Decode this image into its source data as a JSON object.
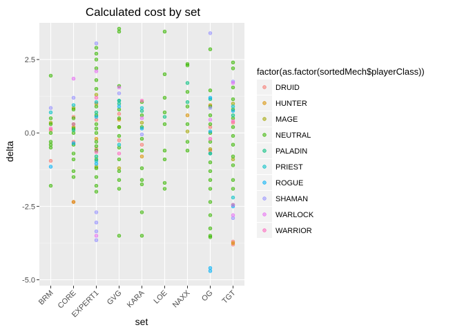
{
  "chart_data": {
    "type": "scatter",
    "title": "Calculated cost by set",
    "xlabel": "set",
    "ylabel": "delta",
    "categories": [
      "BRM",
      "CORE",
      "EXPERT1",
      "GVG",
      "KARA",
      "LOE",
      "NAXX",
      "OG",
      "TGT"
    ],
    "ylim": [
      -5.2,
      3.75
    ],
    "yticks": [
      {
        "value": 2.5,
        "label": "2.5"
      },
      {
        "value": 0.0,
        "label": "0.0"
      },
      {
        "value": -2.5,
        "label": "-2.5"
      },
      {
        "value": -5.0,
        "label": "-5.0"
      }
    ],
    "grid": true,
    "legend": {
      "title": "factor(as.factor(sortedMech$playerClass))",
      "position": "right"
    },
    "series": [
      {
        "name": "DRUID",
        "color": "#F8766D",
        "points": [
          [
            "BRM",
            0.1
          ],
          [
            "BRM",
            -0.95
          ],
          [
            "CORE",
            -2.35
          ],
          [
            "CORE",
            0.55
          ],
          [
            "CORE",
            -0.3
          ],
          [
            "EXPERT1",
            0.45
          ],
          [
            "EXPERT1",
            -0.55
          ],
          [
            "GVG",
            -0.25
          ],
          [
            "GVG",
            0.65
          ],
          [
            "KARA",
            -0.4
          ],
          [
            "OG",
            0.2
          ],
          [
            "OG",
            -0.6
          ],
          [
            "TGT",
            -3.7
          ],
          [
            "TGT",
            -3.8
          ],
          [
            "TGT",
            0.35
          ]
        ]
      },
      {
        "name": "HUNTER",
        "color": "#D89000",
        "points": [
          [
            "CORE",
            -2.35
          ],
          [
            "CORE",
            0.2
          ],
          [
            "EXPERT1",
            1.0
          ],
          [
            "EXPERT1",
            -0.2
          ],
          [
            "GVG",
            0.45
          ],
          [
            "KARA",
            -0.8
          ],
          [
            "NAXX",
            0.6
          ],
          [
            "OG",
            0.95
          ],
          [
            "TGT",
            -3.75
          ]
        ]
      },
      {
        "name": "MAGE",
        "color": "#A3A500",
        "points": [
          [
            "BRM",
            0.35
          ],
          [
            "CORE",
            0.85
          ],
          [
            "EXPERT1",
            1.3
          ],
          [
            "EXPERT1",
            -1.15
          ],
          [
            "GVG",
            0.2
          ],
          [
            "GVG",
            -1.2
          ],
          [
            "KARA",
            0.35
          ],
          [
            "NAXX",
            0.05
          ],
          [
            "OG",
            -0.55
          ],
          [
            "TGT",
            1.0
          ],
          [
            "TGT",
            -0.9
          ]
        ]
      },
      {
        "name": "NEUTRAL",
        "color": "#39B600",
        "points": [
          [
            "BRM",
            1.95
          ],
          [
            "BRM",
            0.5
          ],
          [
            "BRM",
            0.3
          ],
          [
            "BRM",
            0.0
          ],
          [
            "BRM",
            -0.3
          ],
          [
            "BRM",
            -0.5
          ],
          [
            "BRM",
            -1.8
          ],
          [
            "BRM",
            -0.4
          ],
          [
            "CORE",
            0.8
          ],
          [
            "CORE",
            0.5
          ],
          [
            "CORE",
            0.3
          ],
          [
            "CORE",
            0.0
          ],
          [
            "CORE",
            -0.4
          ],
          [
            "CORE",
            -0.7
          ],
          [
            "CORE",
            -1.5
          ],
          [
            "CORE",
            -1.3
          ],
          [
            "CORE",
            -0.9
          ],
          [
            "CORE",
            0.15
          ],
          [
            "EXPERT1",
            2.9
          ],
          [
            "EXPERT1",
            2.7
          ],
          [
            "EXPERT1",
            2.5
          ],
          [
            "EXPERT1",
            2.2
          ],
          [
            "EXPERT1",
            1.8
          ],
          [
            "EXPERT1",
            1.5
          ],
          [
            "EXPERT1",
            0.9
          ],
          [
            "EXPERT1",
            0.6
          ],
          [
            "EXPERT1",
            0.3
          ],
          [
            "EXPERT1",
            0.0
          ],
          [
            "EXPERT1",
            -0.3
          ],
          [
            "EXPERT1",
            -0.6
          ],
          [
            "EXPERT1",
            -0.9
          ],
          [
            "EXPERT1",
            -1.2
          ],
          [
            "EXPERT1",
            -1.5
          ],
          [
            "EXPERT1",
            -1.8
          ],
          [
            "EXPERT1",
            -2.0
          ],
          [
            "EXPERT1",
            -0.45
          ],
          [
            "EXPERT1",
            0.15
          ],
          [
            "GVG",
            3.55
          ],
          [
            "GVG",
            3.45
          ],
          [
            "GVG",
            1.6
          ],
          [
            "GVG",
            1.1
          ],
          [
            "GVG",
            0.8
          ],
          [
            "GVG",
            0.5
          ],
          [
            "GVG",
            0.2
          ],
          [
            "GVG",
            -0.1
          ],
          [
            "GVG",
            -0.5
          ],
          [
            "GVG",
            -0.9
          ],
          [
            "GVG",
            -1.3
          ],
          [
            "GVG",
            -1.6
          ],
          [
            "GVG",
            -1.9
          ],
          [
            "GVG",
            -3.5
          ],
          [
            "KARA",
            1.05
          ],
          [
            "KARA",
            0.6
          ],
          [
            "KARA",
            0.2
          ],
          [
            "KARA",
            -0.2
          ],
          [
            "KARA",
            -0.6
          ],
          [
            "KARA",
            -1.2
          ],
          [
            "KARA",
            -1.6
          ],
          [
            "KARA",
            -1.75
          ],
          [
            "KARA",
            -2.7
          ],
          [
            "KARA",
            -3.5
          ],
          [
            "LOE",
            3.45
          ],
          [
            "LOE",
            2.0
          ],
          [
            "LOE",
            1.2
          ],
          [
            "LOE",
            0.7
          ],
          [
            "LOE",
            0.3
          ],
          [
            "LOE",
            -0.6
          ],
          [
            "LOE",
            -0.9
          ],
          [
            "LOE",
            -1.7
          ],
          [
            "LOE",
            -1.9
          ],
          [
            "NAXX",
            2.35
          ],
          [
            "NAXX",
            2.3
          ],
          [
            "NAXX",
            1.4
          ],
          [
            "NAXX",
            0.9
          ],
          [
            "NAXX",
            0.3
          ],
          [
            "NAXX",
            -0.3
          ],
          [
            "NAXX",
            -0.6
          ],
          [
            "OG",
            2.85
          ],
          [
            "OG",
            1.45
          ],
          [
            "OG",
            0.9
          ],
          [
            "OG",
            0.6
          ],
          [
            "OG",
            0.3
          ],
          [
            "OG",
            0.0
          ],
          [
            "OG",
            -0.3
          ],
          [
            "OG",
            -0.7
          ],
          [
            "OG",
            -1.0
          ],
          [
            "OG",
            -1.3
          ],
          [
            "OG",
            -1.6
          ],
          [
            "OG",
            -1.9
          ],
          [
            "OG",
            -2.8
          ],
          [
            "OG",
            -3.25
          ],
          [
            "OG",
            -3.5
          ],
          [
            "OG",
            -3.55
          ],
          [
            "OG",
            -2.35
          ],
          [
            "TGT",
            2.4
          ],
          [
            "TGT",
            2.2
          ],
          [
            "TGT",
            1.55
          ],
          [
            "TGT",
            1.15
          ],
          [
            "TGT",
            0.8
          ],
          [
            "TGT",
            0.5
          ],
          [
            "TGT",
            0.2
          ],
          [
            "TGT",
            -0.1
          ],
          [
            "TGT",
            -0.4
          ],
          [
            "TGT",
            -0.8
          ],
          [
            "TGT",
            -1.1
          ],
          [
            "TGT",
            -1.6
          ],
          [
            "TGT",
            -1.9
          ],
          [
            "TGT",
            -2.45
          ]
        ]
      },
      {
        "name": "PALADIN",
        "color": "#00BF7D",
        "points": [
          [
            "CORE",
            0.1
          ],
          [
            "EXPERT1",
            0.7
          ],
          [
            "EXPERT1",
            -0.8
          ],
          [
            "GVG",
            1.0
          ],
          [
            "KARA",
            0.75
          ],
          [
            "LOE",
            0.55
          ],
          [
            "NAXX",
            1.7
          ],
          [
            "NAXX",
            1.05
          ],
          [
            "OG",
            1.15
          ],
          [
            "TGT",
            0.6
          ]
        ]
      },
      {
        "name": "PRIEST",
        "color": "#00BFC4",
        "points": [
          [
            "BRM",
            0.7
          ],
          [
            "CORE",
            0.95
          ],
          [
            "EXPERT1",
            1.05
          ],
          [
            "EXPERT1",
            -0.95
          ],
          [
            "GVG",
            1.1
          ],
          [
            "GVG",
            -0.4
          ],
          [
            "KARA",
            0.85
          ],
          [
            "OG",
            -0.7
          ],
          [
            "TGT",
            -2.2
          ],
          [
            "TGT",
            0.9
          ]
        ]
      },
      {
        "name": "ROGUE",
        "color": "#00B0F6",
        "points": [
          [
            "BRM",
            -1.15
          ],
          [
            "CORE",
            -0.35
          ],
          [
            "EXPERT1",
            0.55
          ],
          [
            "EXPERT1",
            -1.05
          ],
          [
            "GVG",
            0.9
          ],
          [
            "KARA",
            0.15
          ],
          [
            "OG",
            -4.6
          ],
          [
            "OG",
            -4.7
          ],
          [
            "OG",
            1.2
          ],
          [
            "OG",
            0.05
          ],
          [
            "TGT",
            -2.5
          ],
          [
            "TGT",
            0.75
          ]
        ]
      },
      {
        "name": "SHAMAN",
        "color": "#9590FF",
        "points": [
          [
            "BRM",
            0.85
          ],
          [
            "CORE",
            1.2
          ],
          [
            "EXPERT1",
            3.05
          ],
          [
            "EXPERT1",
            -2.7
          ],
          [
            "EXPERT1",
            -3.05
          ],
          [
            "EXPERT1",
            -3.35
          ],
          [
            "EXPERT1",
            -3.65
          ],
          [
            "GVG",
            1.35
          ],
          [
            "KARA",
            -0.05
          ],
          [
            "OG",
            3.4
          ],
          [
            "OG",
            0.85
          ],
          [
            "TGT",
            -2.9
          ],
          [
            "TGT",
            1.75
          ]
        ]
      },
      {
        "name": "WARLOCK",
        "color": "#E76BF3",
        "points": [
          [
            "CORE",
            1.85
          ],
          [
            "EXPERT1",
            2.1
          ],
          [
            "EXPERT1",
            -3.5
          ],
          [
            "GVG",
            1.55
          ],
          [
            "KARA",
            0.5
          ],
          [
            "OG",
            0.45
          ],
          [
            "TGT",
            1.7
          ],
          [
            "TGT",
            -2.45
          ],
          [
            "TGT",
            -2.8
          ]
        ]
      },
      {
        "name": "WARRIOR",
        "color": "#FF62BC",
        "points": [
          [
            "BRM",
            0.15
          ],
          [
            "CORE",
            0.3
          ],
          [
            "EXPERT1",
            1.2
          ],
          [
            "EXPERT1",
            -0.65
          ],
          [
            "GVG",
            -0.7
          ],
          [
            "KARA",
            1.1
          ],
          [
            "OG",
            -0.2
          ],
          [
            "TGT",
            0.4
          ]
        ]
      }
    ]
  }
}
